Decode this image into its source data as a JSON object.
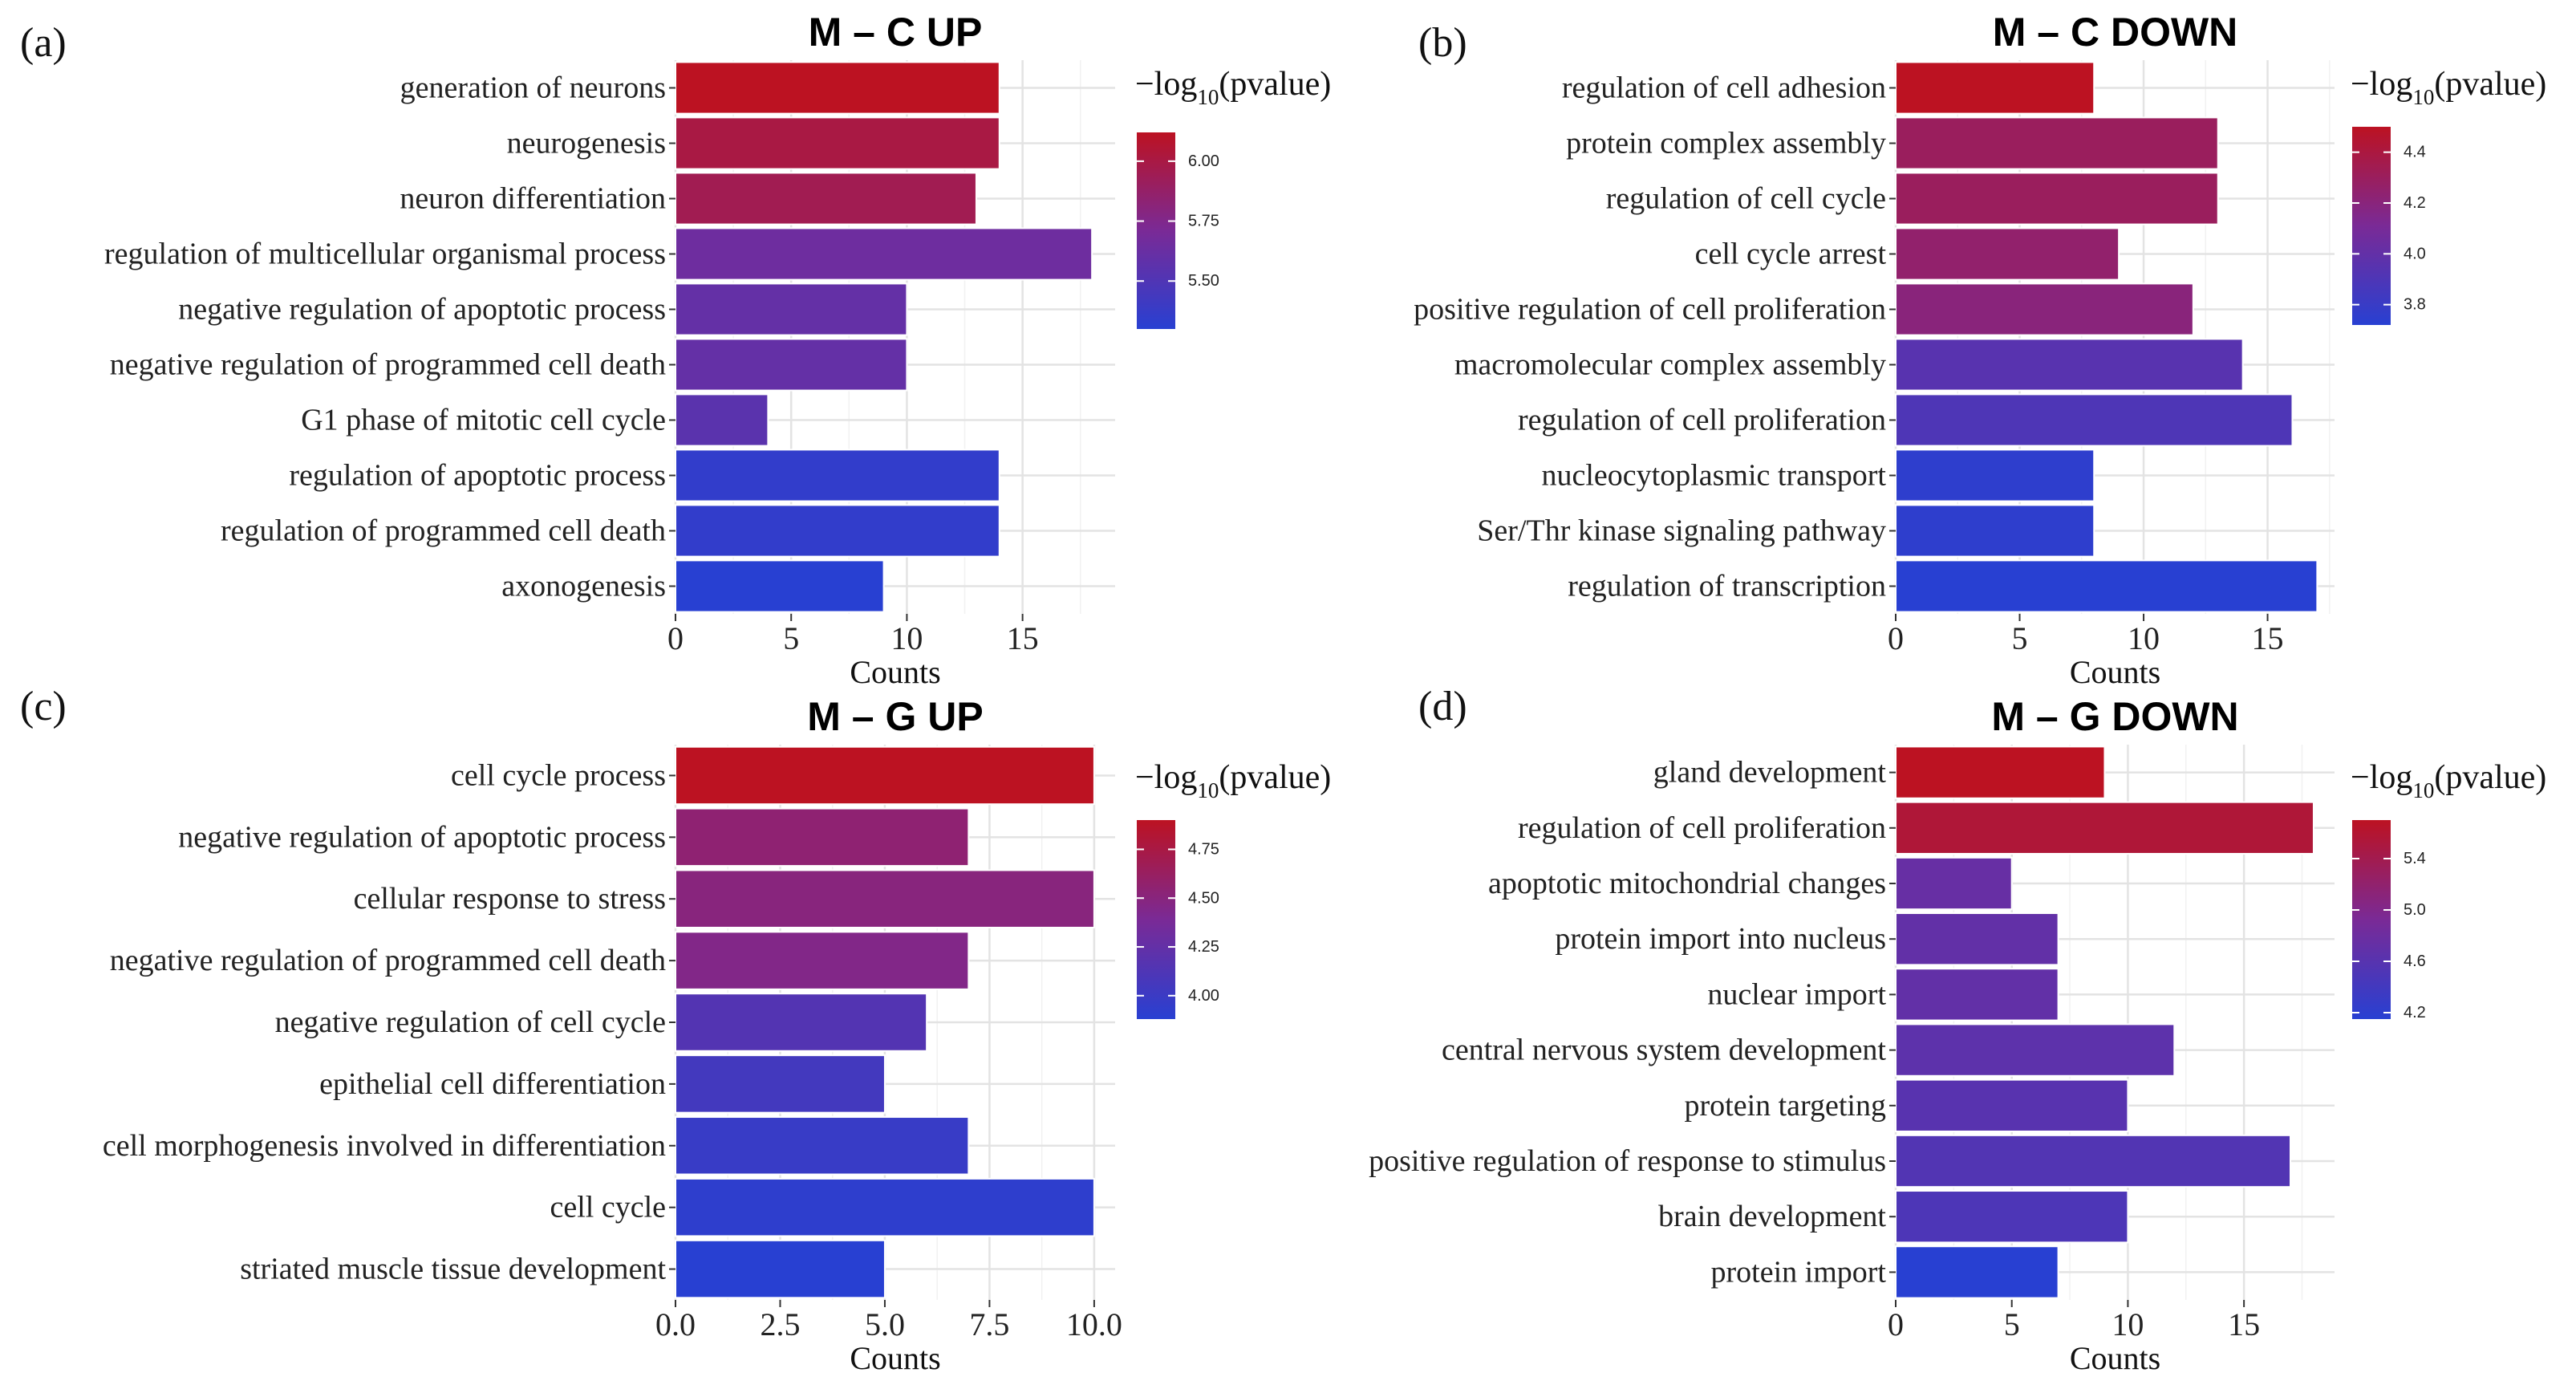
{
  "legend_title": {
    "prefix": "−log",
    "sub": "10",
    "suffix": "(pvalue)"
  },
  "x_axis_title": "Counts",
  "chart_data": [
    {
      "type": "bar",
      "orientation": "horizontal",
      "letter": "(a)",
      "title": "M – C UP",
      "xlabel": "Counts",
      "xlim": [
        0,
        19
      ],
      "xticks": [
        "0",
        "5",
        "10",
        "15"
      ],
      "categories": [
        "generation of neurons",
        "neurogenesis",
        "neuron differentiation",
        "regulation of multicellular organismal process",
        "negative regulation of apoptotic process",
        "negative regulation of programmed cell death",
        "G1 phase of mitotic cell cycle",
        "regulation of apoptotic process",
        "regulation of programmed cell death",
        "axonogenesis"
      ],
      "values": [
        14,
        14,
        13,
        18,
        10,
        10,
        4,
        14,
        14,
        9
      ],
      "color_values": [
        6.2,
        6.0,
        5.95,
        5.65,
        5.6,
        5.6,
        5.55,
        5.35,
        5.35,
        5.25
      ],
      "colorbar": {
        "min": 5.3,
        "max": 6.12,
        "ticks": [
          5.5,
          5.75,
          6.0
        ],
        "tick_labels": [
          "5.50",
          "5.75",
          "6.00"
        ]
      }
    },
    {
      "type": "bar",
      "orientation": "horizontal",
      "letter": "(b)",
      "title": "M – C DOWN",
      "xlabel": "Counts",
      "xlim": [
        0,
        17.7
      ],
      "xticks": [
        "0",
        "5",
        "10",
        "15"
      ],
      "categories": [
        "regulation of cell adhesion",
        "protein complex assembly",
        "regulation of cell cycle",
        "cell cycle arrest",
        "positive regulation of cell proliferation",
        "macromolecular complex assembly",
        "regulation of cell proliferation",
        "nucleocytoplasmic transport",
        "Ser/Thr kinase signaling pathway",
        "regulation of transcription"
      ],
      "values": [
        8,
        13,
        13,
        9,
        12,
        14,
        16,
        8,
        8,
        17
      ],
      "color_values": [
        4.5,
        4.3,
        4.3,
        4.25,
        4.2,
        3.95,
        3.9,
        3.75,
        3.75,
        3.72
      ],
      "colorbar": {
        "min": 3.72,
        "max": 4.5,
        "ticks": [
          3.8,
          4.0,
          4.2,
          4.4
        ],
        "tick_labels": [
          "3.8",
          "4.0",
          "4.2",
          "4.4"
        ]
      }
    },
    {
      "type": "bar",
      "orientation": "horizontal",
      "letter": "(c)",
      "title": "M – G UP",
      "xlabel": "Counts",
      "xlim": [
        0,
        10.5
      ],
      "xticks": [
        "0.0",
        "2.5",
        "5.0",
        "7.5",
        "10.0"
      ],
      "categories": [
        "cell cycle process",
        "negative regulation of apoptotic process",
        "cellular response to stress",
        "negative regulation of programmed cell death",
        "negative regulation of cell cycle",
        "epithelial cell differentiation",
        "cell morphogenesis involved in differentiation",
        "cell cycle",
        "striated muscle tissue development"
      ],
      "values": [
        10,
        7,
        10,
        7,
        6,
        5,
        7,
        10,
        5
      ],
      "color_values": [
        4.9,
        4.55,
        4.5,
        4.45,
        4.15,
        4.05,
        3.98,
        3.92,
        3.88
      ],
      "colorbar": {
        "min": 3.88,
        "max": 4.9,
        "ticks": [
          4.0,
          4.25,
          4.5,
          4.75
        ],
        "tick_labels": [
          "4.00",
          "4.25",
          "4.50",
          "4.75"
        ]
      }
    },
    {
      "type": "bar",
      "orientation": "horizontal",
      "letter": "(d)",
      "title": "M – G DOWN",
      "xlabel": "Counts",
      "xlim": [
        0,
        18.9
      ],
      "xticks": [
        "0",
        "5",
        "10",
        "15"
      ],
      "categories": [
        "gland development",
        "regulation of cell proliferation",
        "apoptotic mitochondrial changes",
        "protein import into nucleus",
        "nuclear import",
        "central nervous system development",
        "protein targeting",
        "positive regulation of response to stimulus",
        "brain development",
        "protein import"
      ],
      "values": [
        9,
        18,
        5,
        7,
        7,
        12,
        10,
        17,
        10,
        7
      ],
      "color_values": [
        5.7,
        5.55,
        4.75,
        4.7,
        4.7,
        4.65,
        4.6,
        4.55,
        4.5,
        4.15
      ],
      "colorbar": {
        "min": 4.15,
        "max": 5.7,
        "ticks": [
          4.2,
          4.6,
          5.0,
          5.4
        ],
        "tick_labels": [
          "4.2",
          "4.6",
          "5.0",
          "5.4"
        ]
      }
    }
  ]
}
